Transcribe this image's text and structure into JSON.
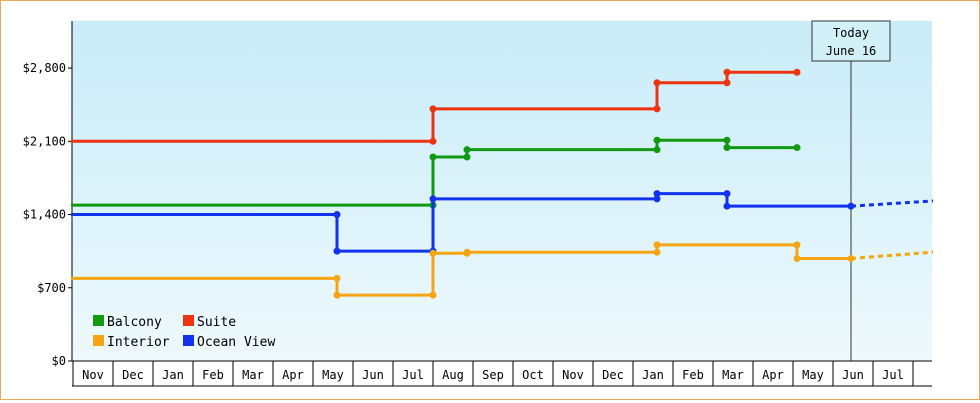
{
  "chart_data": {
    "type": "line",
    "step": true,
    "x_labels": [
      "Nov",
      "Dec",
      "Jan",
      "Feb",
      "Mar",
      "Apr",
      "May",
      "Jun",
      "Jul",
      "Aug",
      "Sep",
      "Oct",
      "Nov",
      "Dec",
      "Jan",
      "Feb",
      "Mar",
      "Apr",
      "May",
      "Jun",
      "Jul"
    ],
    "y_ticks": [
      "$0",
      "$700",
      "$1,400",
      "$2,100",
      "$2,800"
    ],
    "y_tick_values": [
      0,
      700,
      1400,
      2100,
      2800
    ],
    "ylim": [
      0,
      3250
    ],
    "today": {
      "line1": "Today",
      "line2": "June 16",
      "x": 19.45
    },
    "legend": [
      {
        "name": "Balcony",
        "color": "#119911"
      },
      {
        "name": "Suite",
        "color": "#ee3311"
      },
      {
        "name": "Interior",
        "color": "#f5a511"
      },
      {
        "name": "Ocean View",
        "color": "#1133ee"
      }
    ],
    "series": [
      {
        "name": "Suite",
        "color": "#ee3311",
        "points": [
          [
            -0.05,
            2100
          ],
          [
            9.0,
            2100
          ],
          [
            9.0,
            2410
          ],
          [
            14.6,
            2410
          ],
          [
            14.6,
            2660
          ],
          [
            16.35,
            2660
          ],
          [
            16.35,
            2760
          ],
          [
            18.1,
            2760
          ]
        ],
        "projection": []
      },
      {
        "name": "Balcony",
        "color": "#119911",
        "points": [
          [
            -0.05,
            1490
          ],
          [
            9.0,
            1490
          ],
          [
            9.0,
            1950
          ],
          [
            9.85,
            1950
          ],
          [
            9.85,
            2020
          ],
          [
            14.6,
            2020
          ],
          [
            14.6,
            2110
          ],
          [
            16.35,
            2110
          ],
          [
            16.35,
            2040
          ],
          [
            18.1,
            2040
          ]
        ],
        "projection": []
      },
      {
        "name": "Ocean View",
        "color": "#1133ee",
        "points": [
          [
            -0.05,
            1400
          ],
          [
            6.6,
            1400
          ],
          [
            6.6,
            1050
          ],
          [
            9.0,
            1050
          ],
          [
            9.0,
            1550
          ],
          [
            14.6,
            1550
          ],
          [
            14.6,
            1600
          ],
          [
            16.35,
            1600
          ],
          [
            16.35,
            1480
          ],
          [
            19.45,
            1480
          ]
        ],
        "projection": [
          [
            19.45,
            1480
          ],
          [
            21.5,
            1530
          ]
        ]
      },
      {
        "name": "Interior",
        "color": "#f5a511",
        "points": [
          [
            -0.05,
            790
          ],
          [
            6.6,
            790
          ],
          [
            6.6,
            630
          ],
          [
            9.0,
            630
          ],
          [
            9.0,
            1030
          ],
          [
            9.85,
            1030
          ],
          [
            9.85,
            1040
          ],
          [
            14.6,
            1040
          ],
          [
            14.6,
            1110
          ],
          [
            18.1,
            1110
          ],
          [
            18.1,
            980
          ],
          [
            19.45,
            980
          ]
        ],
        "projection": [
          [
            19.45,
            980
          ],
          [
            21.5,
            1040
          ]
        ]
      }
    ]
  }
}
